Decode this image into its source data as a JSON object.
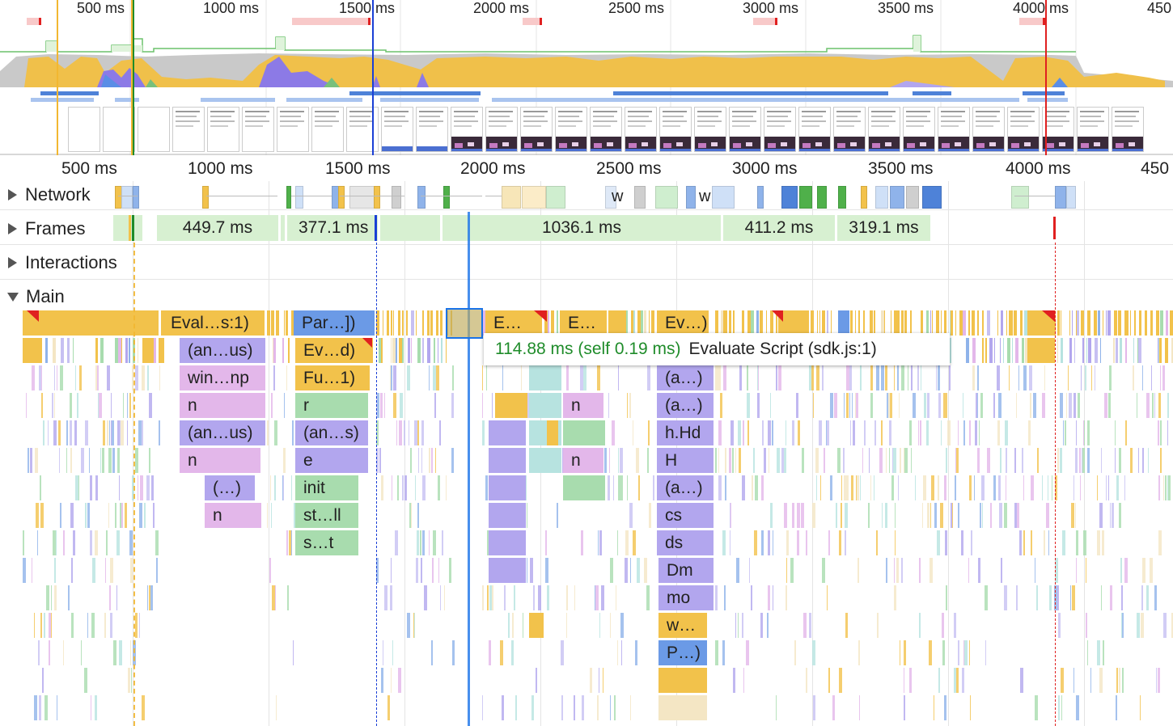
{
  "overview": {
    "ticks": [
      "500 ms",
      "1000 ms",
      "1500 ms",
      "2000 ms",
      "2500 ms",
      "3000 ms",
      "3500 ms",
      "4000 ms",
      "450"
    ]
  },
  "ruler": {
    "ticks": [
      "500 ms",
      "1000 ms",
      "1500 ms",
      "2000 ms",
      "2500 ms",
      "3000 ms",
      "3500 ms",
      "4000 ms",
      "450"
    ]
  },
  "tracks": {
    "network": "Network",
    "frames": "Frames",
    "interactions": "Interactions",
    "main": "Main"
  },
  "network_labels": [
    "w",
    "w"
  ],
  "frames": [
    "449.7 ms",
    "377.1 ms",
    "1036.1 ms",
    "411.2 ms",
    "319.1 ms"
  ],
  "flame": {
    "col1": [
      "Eval…s:1)",
      "(an…us)",
      "win…np",
      "n",
      "(an…us)",
      "n",
      "(…)",
      "n"
    ],
    "col2": [
      "Par…])",
      "Ev…d)",
      "Fu…1)",
      "r",
      "(an…s)",
      "e",
      "init",
      "st…ll",
      "s…t"
    ],
    "col3": [
      "E…",
      "E…"
    ],
    "col3_n": [
      "n",
      "n"
    ],
    "col4": [
      "Ev…)",
      "(a…)",
      "(a…)",
      "h.Hd",
      "H",
      "(a…)",
      "cs",
      "ds",
      "Dm",
      "mo",
      "w…",
      "P…)"
    ]
  },
  "tooltip": {
    "time": "114.88 ms (self 0.19 ms)",
    "desc": "Evaluate Script (sdk.js:1)"
  },
  "colors": {
    "scripting": "#f2c24b",
    "rendering": "#b2a6ee",
    "painting": "#a8dcae",
    "parse": "#6b9ae6",
    "selection": "#1a73e8"
  }
}
